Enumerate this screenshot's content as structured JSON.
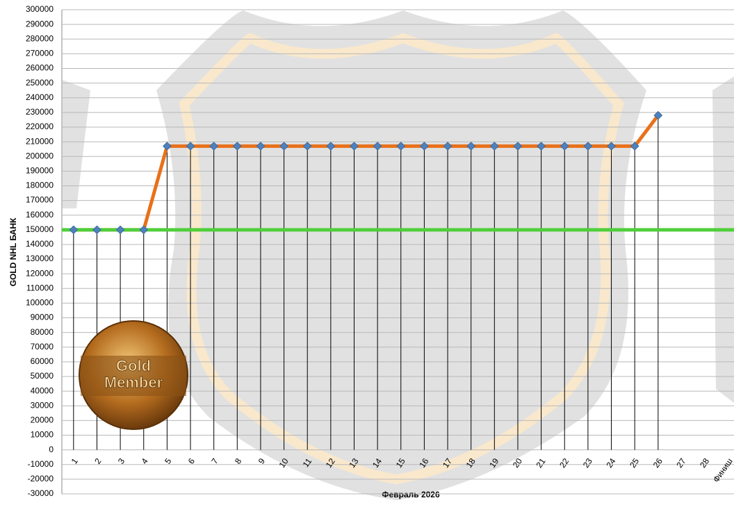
{
  "chart_data": {
    "type": "line",
    "x_label": "Февраль 2026",
    "y_label": "GOLD NHL  БАНК",
    "categories": [
      "1",
      "2",
      "3",
      "4",
      "5",
      "6",
      "7",
      "8",
      "9",
      "10",
      "11",
      "12",
      "13",
      "14",
      "15",
      "16",
      "17",
      "18",
      "19",
      "20",
      "21",
      "22",
      "23",
      "24",
      "25",
      "26",
      "27",
      "28",
      "Финиш"
    ],
    "series": [
      {
        "name": "GOLD NHL БАНК",
        "color": "#e8711a",
        "marker_color": "#4f81bd",
        "values": [
          150000,
          150000,
          150000,
          150000,
          207000,
          207000,
          207000,
          207000,
          207000,
          207000,
          207000,
          207000,
          207000,
          207000,
          207000,
          207000,
          207000,
          207000,
          207000,
          207000,
          207000,
          207000,
          207000,
          207000,
          207000,
          228000,
          null,
          null,
          null
        ]
      }
    ],
    "reference_line": {
      "value": 150000,
      "color": "#4fcf3a"
    },
    "ylim": [
      -30000,
      300000
    ],
    "yticks": [
      -30000,
      -20000,
      -10000,
      0,
      10000,
      20000,
      30000,
      40000,
      50000,
      60000,
      70000,
      80000,
      90000,
      100000,
      110000,
      120000,
      130000,
      140000,
      150000,
      160000,
      170000,
      180000,
      190000,
      200000,
      210000,
      220000,
      230000,
      240000,
      250000,
      260000,
      270000,
      280000,
      290000,
      300000
    ],
    "grid": true,
    "drop_lines": true,
    "badge": [
      "Gold",
      "Member"
    ]
  }
}
